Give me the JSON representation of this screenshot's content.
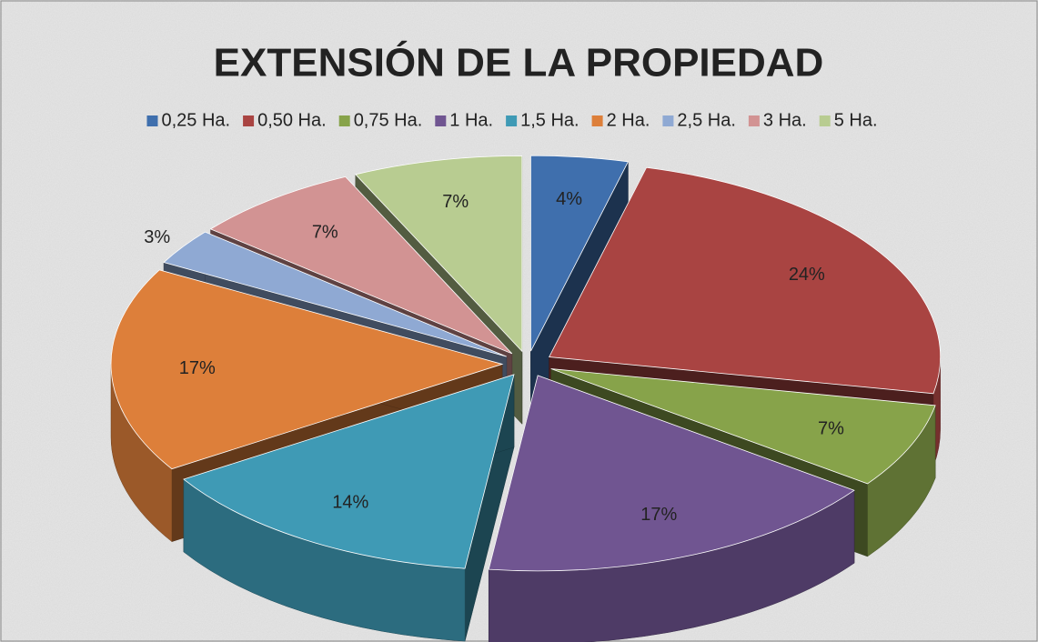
{
  "chart_data": {
    "type": "pie3d",
    "title": "EXTENSIÓN DE LA PROPIEDAD",
    "categories": [
      "0,25 Ha.",
      "0,50 Ha.",
      "0,75 Ha.",
      "1 Ha.",
      "1,5 Ha.",
      "2 Ha.",
      "2,5 Ha.",
      "3 Ha.",
      "5 Ha."
    ],
    "values": [
      4,
      24,
      7,
      17,
      14,
      17,
      3,
      7,
      7
    ],
    "value_labels": [
      "4%",
      "24%",
      "7%",
      "17%",
      "14%",
      "17%",
      "3%",
      "7%",
      "7%"
    ],
    "colors": [
      "#3f6fad",
      "#a94442",
      "#87a34a",
      "#705591",
      "#3f9ab5",
      "#dd7f3a",
      "#8fa9d3",
      "#d29393",
      "#b8cc91"
    ],
    "legend": "top"
  }
}
